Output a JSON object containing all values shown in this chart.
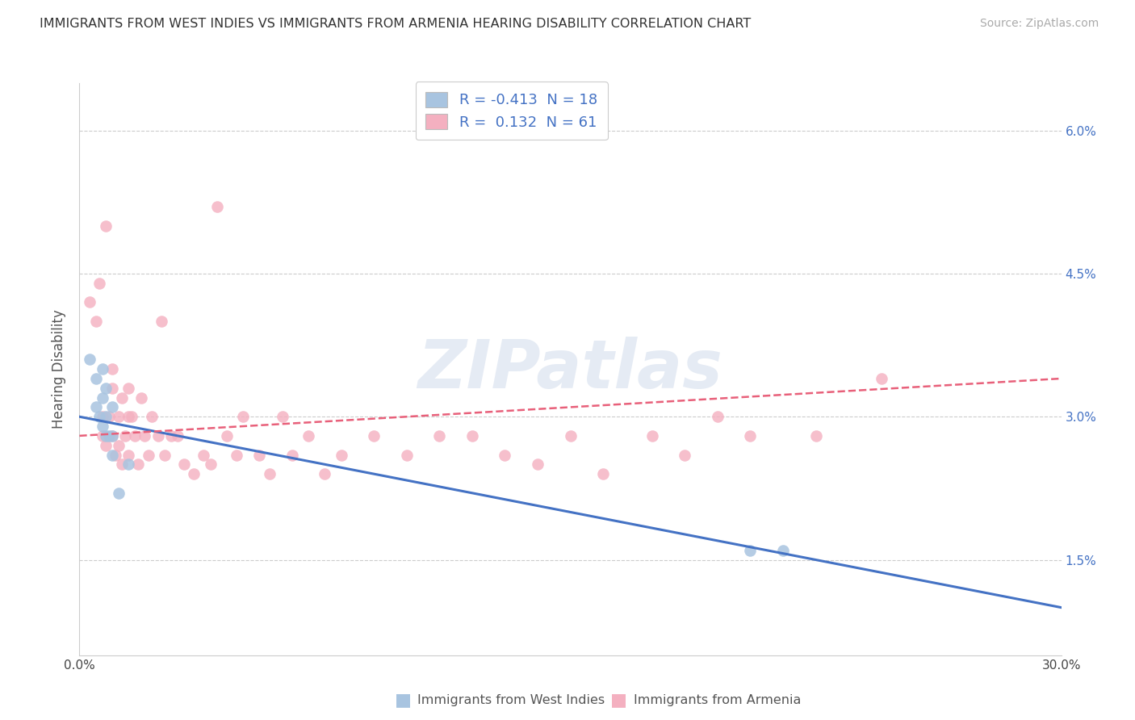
{
  "title": "IMMIGRANTS FROM WEST INDIES VS IMMIGRANTS FROM ARMENIA HEARING DISABILITY CORRELATION CHART",
  "source": "Source: ZipAtlas.com",
  "ylabel": "Hearing Disability",
  "xmin": 0.0,
  "xmax": 0.3,
  "ymin": 0.005,
  "ymax": 0.065,
  "x_ticks": [
    0.0,
    0.05,
    0.1,
    0.15,
    0.2,
    0.25,
    0.3
  ],
  "x_tick_labels": [
    "0.0%",
    "",
    "",
    "",
    "",
    "",
    "30.0%"
  ],
  "y_ticks": [
    0.015,
    0.03,
    0.045,
    0.06
  ],
  "y_tick_labels": [
    "1.5%",
    "3.0%",
    "4.5%",
    "6.0%"
  ],
  "legend_R_west_indies": "-0.413",
  "legend_N_west_indies": "18",
  "legend_R_armenia": "0.132",
  "legend_N_armenia": "61",
  "color_west_indies": "#a8c4e0",
  "color_armenia": "#f4b0c0",
  "line_color_west_indies": "#4472c4",
  "line_color_armenia": "#e8607a",
  "watermark": "ZIPatlas",
  "wi_x": [
    0.003,
    0.005,
    0.005,
    0.006,
    0.007,
    0.007,
    0.007,
    0.008,
    0.008,
    0.008,
    0.009,
    0.01,
    0.01,
    0.01,
    0.012,
    0.015,
    0.205,
    0.215
  ],
  "wi_y": [
    0.036,
    0.034,
    0.031,
    0.03,
    0.032,
    0.035,
    0.029,
    0.03,
    0.028,
    0.033,
    0.028,
    0.031,
    0.028,
    0.026,
    0.022,
    0.025,
    0.016,
    0.016
  ],
  "arm_x": [
    0.003,
    0.005,
    0.006,
    0.007,
    0.007,
    0.008,
    0.008,
    0.009,
    0.01,
    0.01,
    0.01,
    0.011,
    0.012,
    0.012,
    0.013,
    0.013,
    0.014,
    0.015,
    0.015,
    0.015,
    0.016,
    0.017,
    0.018,
    0.019,
    0.02,
    0.021,
    0.022,
    0.024,
    0.025,
    0.026,
    0.028,
    0.03,
    0.032,
    0.035,
    0.038,
    0.04,
    0.042,
    0.045,
    0.048,
    0.05,
    0.055,
    0.058,
    0.062,
    0.065,
    0.07,
    0.075,
    0.08,
    0.09,
    0.1,
    0.11,
    0.12,
    0.13,
    0.14,
    0.15,
    0.16,
    0.175,
    0.185,
    0.195,
    0.205,
    0.225,
    0.245
  ],
  "arm_y": [
    0.042,
    0.04,
    0.044,
    0.03,
    0.028,
    0.05,
    0.027,
    0.03,
    0.028,
    0.033,
    0.035,
    0.026,
    0.027,
    0.03,
    0.025,
    0.032,
    0.028,
    0.026,
    0.03,
    0.033,
    0.03,
    0.028,
    0.025,
    0.032,
    0.028,
    0.026,
    0.03,
    0.028,
    0.04,
    0.026,
    0.028,
    0.028,
    0.025,
    0.024,
    0.026,
    0.025,
    0.052,
    0.028,
    0.026,
    0.03,
    0.026,
    0.024,
    0.03,
    0.026,
    0.028,
    0.024,
    0.026,
    0.028,
    0.026,
    0.028,
    0.028,
    0.026,
    0.025,
    0.028,
    0.024,
    0.028,
    0.026,
    0.03,
    0.028,
    0.028,
    0.034
  ],
  "wi_line_x0": 0.0,
  "wi_line_x1": 0.3,
  "wi_line_y0": 0.03,
  "wi_line_y1": 0.01,
  "arm_line_x0": 0.0,
  "arm_line_x1": 0.3,
  "arm_line_y0": 0.028,
  "arm_line_y1": 0.034
}
